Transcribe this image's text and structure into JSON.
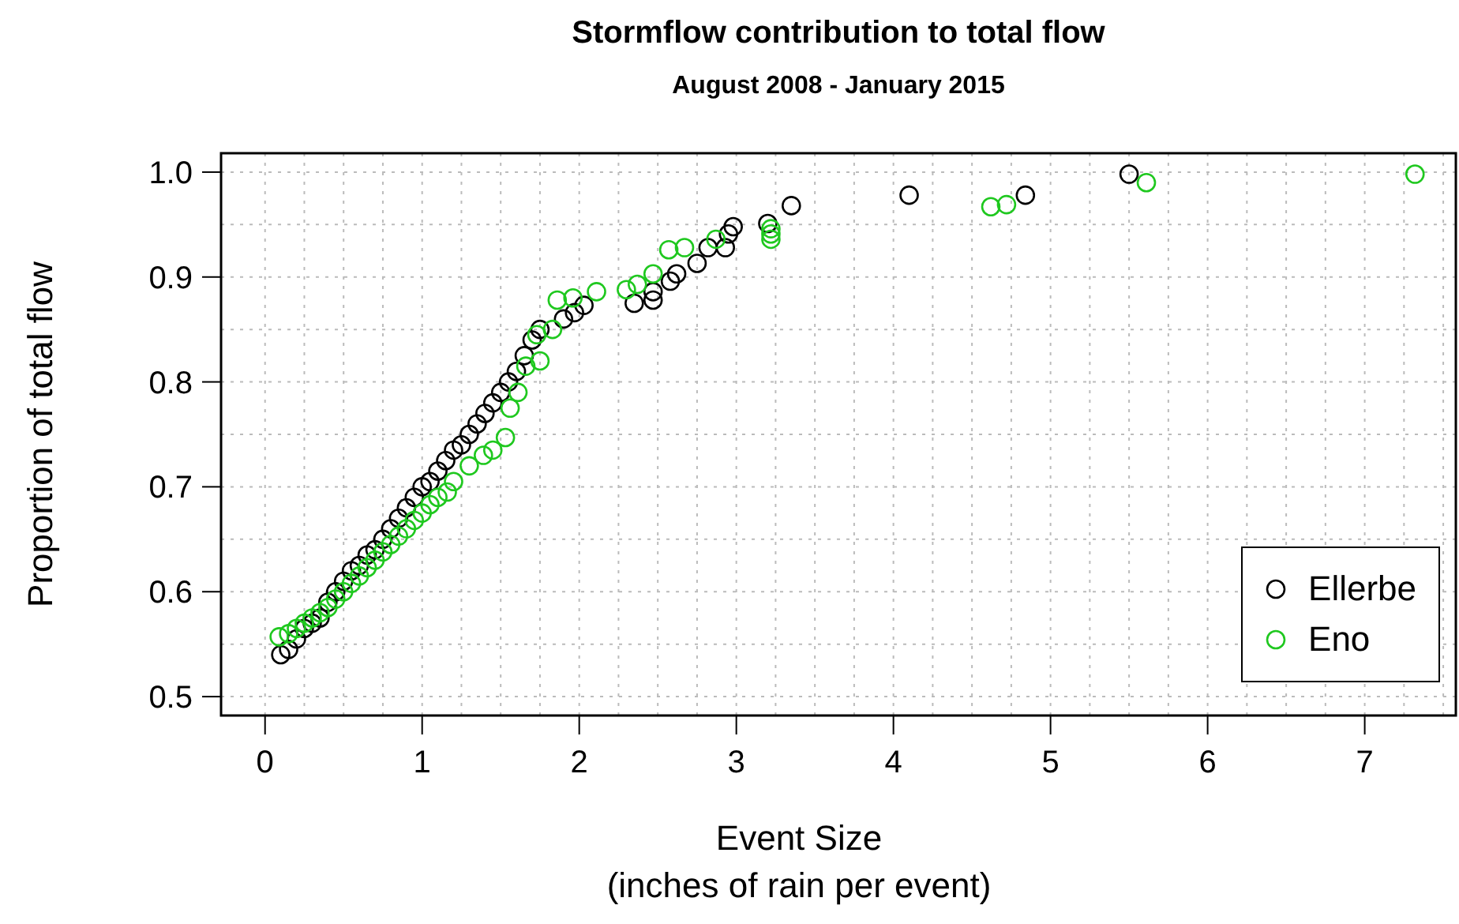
{
  "chart_data": {
    "type": "scatter",
    "title": "Stormflow contribution to total flow",
    "subtitle": "August 2008 - January 2015",
    "xlabel": "Event Size\n(inches of rain per event)",
    "ylabel": "Proportion of total flow",
    "xlim": [
      -0.28,
      7.58
    ],
    "ylim": [
      0.482,
      1.018
    ],
    "xticks": [
      0,
      {
        "value": 0.25,
        "label": null
      },
      {
        "value": 0.5,
        "label": null
      },
      {
        "value": 0.75,
        "label": null
      },
      1,
      {
        "value": 1.25,
        "label": null
      },
      {
        "value": 1.5,
        "label": null
      },
      {
        "value": 1.75,
        "label": null
      },
      2,
      {
        "value": 2.25,
        "label": null
      },
      {
        "value": 2.5,
        "label": null
      },
      {
        "value": 2.75,
        "label": null
      },
      3,
      {
        "value": 3.25,
        "label": null
      },
      {
        "value": 3.5,
        "label": null
      },
      {
        "value": 3.75,
        "label": null
      },
      4,
      {
        "value": 4.25,
        "label": null
      },
      {
        "value": 4.5,
        "label": null
      },
      {
        "value": 4.75,
        "label": null
      },
      5,
      {
        "value": 5.25,
        "label": null
      },
      {
        "value": 5.5,
        "label": null
      },
      {
        "value": 5.75,
        "label": null
      },
      6,
      {
        "value": 6.25,
        "label": null
      },
      {
        "value": 6.5,
        "label": null
      },
      {
        "value": 6.75,
        "label": null
      },
      7,
      {
        "value": 7.25,
        "label": null
      },
      {
        "value": 7.5,
        "label": null
      }
    ],
    "yticks": [
      {
        "value": 0.5,
        "label": "0.5"
      },
      {
        "value": 0.55,
        "label": null
      },
      {
        "value": 0.6,
        "label": "0.6"
      },
      {
        "value": 0.65,
        "label": null
      },
      {
        "value": 0.7,
        "label": "0.7"
      },
      {
        "value": 0.75,
        "label": null
      },
      {
        "value": 0.8,
        "label": "0.8"
      },
      {
        "value": 0.85,
        "label": null
      },
      {
        "value": 0.9,
        "label": "0.9"
      },
      {
        "value": 0.95,
        "label": null
      },
      {
        "value": 1.0,
        "label": "1.0"
      }
    ],
    "grid": true,
    "legend": "bottom right",
    "marker": "circle",
    "series": [
      {
        "name": "Ellerbe",
        "color": "#000000",
        "x": [
          0.1,
          0.15,
          0.2,
          0.25,
          0.3,
          0.35,
          0.4,
          0.45,
          0.5,
          0.55,
          0.6,
          0.65,
          0.7,
          0.75,
          0.8,
          0.85,
          0.9,
          0.95,
          1.0,
          1.05,
          1.1,
          1.15,
          1.2,
          1.25,
          1.3,
          1.35,
          1.4,
          1.45,
          1.5,
          1.55,
          1.6,
          1.65,
          1.7,
          1.75,
          1.9,
          1.97,
          2.03,
          2.35,
          2.47,
          2.47,
          2.58,
          2.62,
          2.75,
          2.82,
          2.93,
          2.95,
          2.98,
          3.2,
          3.35,
          4.1,
          4.84,
          5.5
        ],
        "values": [
          0.54,
          0.545,
          0.555,
          0.565,
          0.57,
          0.575,
          0.59,
          0.6,
          0.61,
          0.62,
          0.625,
          0.635,
          0.64,
          0.65,
          0.66,
          0.67,
          0.68,
          0.69,
          0.7,
          0.705,
          0.715,
          0.725,
          0.735,
          0.74,
          0.75,
          0.76,
          0.77,
          0.78,
          0.79,
          0.8,
          0.81,
          0.825,
          0.84,
          0.85,
          0.86,
          0.866,
          0.873,
          0.875,
          0.886,
          0.878,
          0.896,
          0.903,
          0.913,
          0.928,
          0.928,
          0.941,
          0.948,
          0.951,
          0.968,
          0.978,
          0.978,
          0.998
        ]
      },
      {
        "name": "Eno",
        "color": "#1fc81f",
        "x": [
          0.09,
          0.15,
          0.2,
          0.25,
          0.3,
          0.35,
          0.4,
          0.45,
          0.5,
          0.55,
          0.6,
          0.65,
          0.7,
          0.75,
          0.8,
          0.85,
          0.9,
          0.95,
          1.0,
          1.05,
          1.1,
          1.16,
          1.2,
          1.3,
          1.39,
          1.45,
          1.53,
          1.56,
          1.61,
          1.66,
          1.73,
          1.75,
          1.83,
          1.86,
          1.96,
          2.11,
          2.3,
          2.37,
          2.47,
          2.57,
          2.67,
          2.87,
          3.22,
          3.22,
          3.22,
          4.62,
          4.72,
          5.61,
          7.32
        ],
        "values": [
          0.557,
          0.56,
          0.565,
          0.57,
          0.575,
          0.58,
          0.585,
          0.593,
          0.6,
          0.608,
          0.615,
          0.623,
          0.63,
          0.638,
          0.645,
          0.653,
          0.66,
          0.668,
          0.675,
          0.683,
          0.69,
          0.695,
          0.705,
          0.72,
          0.73,
          0.735,
          0.747,
          0.775,
          0.79,
          0.815,
          0.845,
          0.82,
          0.85,
          0.878,
          0.88,
          0.886,
          0.888,
          0.893,
          0.903,
          0.926,
          0.928,
          0.936,
          0.946,
          0.941,
          0.936,
          0.967,
          0.969,
          0.99,
          0.998
        ]
      }
    ]
  }
}
